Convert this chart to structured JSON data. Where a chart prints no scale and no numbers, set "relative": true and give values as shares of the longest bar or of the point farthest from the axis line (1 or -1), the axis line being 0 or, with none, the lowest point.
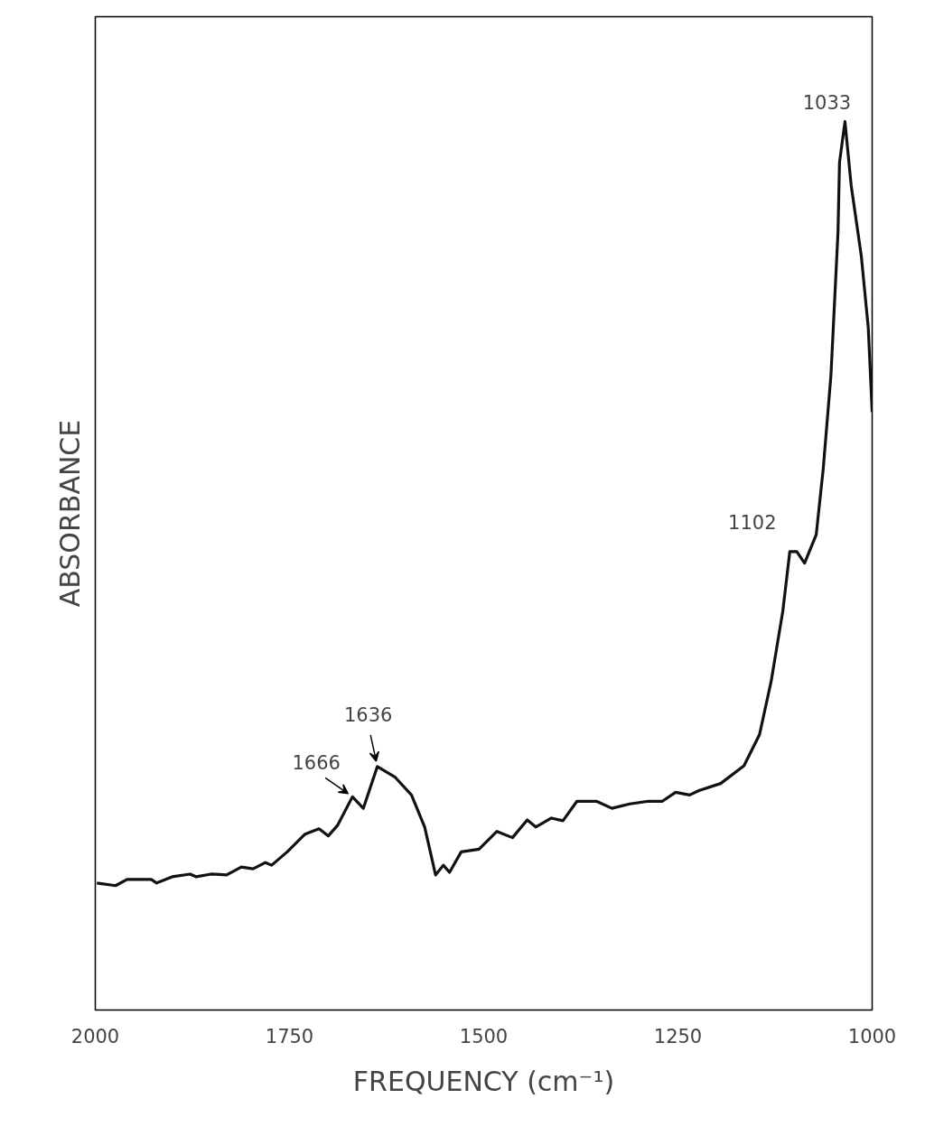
{
  "chart_data": {
    "type": "line",
    "relative": true,
    "xlabel": "FREQUENCY (cm⁻¹)",
    "ylabel": "ABSORBANCE",
    "xlim": [
      2000,
      1000
    ],
    "xticks": [
      2000,
      1750,
      1500,
      1250,
      1000
    ],
    "grid": false,
    "line_style": "solid",
    "x": [
      1998,
      1974,
      1959,
      1928,
      1921,
      1901,
      1878,
      1870,
      1851,
      1831,
      1812,
      1797,
      1781,
      1773,
      1753,
      1730,
      1712,
      1700,
      1688,
      1669,
      1655,
      1637,
      1614,
      1593,
      1576,
      1562,
      1552,
      1544,
      1529,
      1506,
      1483,
      1463,
      1444,
      1433,
      1413,
      1398,
      1380,
      1355,
      1335,
      1312,
      1288,
      1270,
      1253,
      1235,
      1223,
      1195,
      1165,
      1145,
      1130,
      1115,
      1106,
      1097,
      1087,
      1072,
      1063,
      1053,
      1044,
      1042,
      1035,
      1027,
      1014,
      1005,
      1000
    ],
    "series": [
      {
        "color": "#111111",
        "values": [
          0.143,
          0.14,
          0.147,
          0.147,
          0.143,
          0.15,
          0.153,
          0.15,
          0.153,
          0.152,
          0.161,
          0.159,
          0.166,
          0.163,
          0.178,
          0.198,
          0.204,
          0.196,
          0.208,
          0.24,
          0.227,
          0.274,
          0.262,
          0.242,
          0.206,
          0.152,
          0.163,
          0.155,
          0.178,
          0.181,
          0.201,
          0.194,
          0.214,
          0.206,
          0.216,
          0.213,
          0.235,
          0.235,
          0.227,
          0.232,
          0.235,
          0.235,
          0.245,
          0.242,
          0.247,
          0.255,
          0.275,
          0.31,
          0.37,
          0.449,
          0.516,
          0.516,
          0.503,
          0.535,
          0.609,
          0.715,
          0.875,
          0.954,
          1.0,
          0.928,
          0.849,
          0.768,
          0.673
        ]
      }
    ],
    "annotations": [
      {
        "text": "1666",
        "x": 1669,
        "y": 0.24
      },
      {
        "text": "1636",
        "x": 1637,
        "y": 0.274
      },
      {
        "text": "1102",
        "x": 1102,
        "y": 0.516
      },
      {
        "text": "1033",
        "x": 1035,
        "y": 1.0
      }
    ]
  }
}
